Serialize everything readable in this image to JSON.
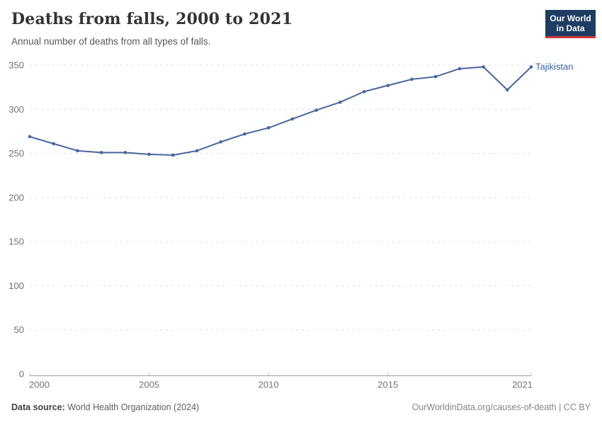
{
  "header": {
    "title": "Deaths from falls, 2000 to 2021",
    "subtitle": "Annual number of deaths from all types of falls."
  },
  "logo": {
    "line1": "Our World",
    "line2": "in Data",
    "bg_color": "#1d3d63",
    "accent_color": "#cc3b3b"
  },
  "footer": {
    "source_label": "Data source:",
    "source_value": "World Health Organization (2024)",
    "credit": "OurWorldinData.org/causes-of-death | CC BY"
  },
  "chart_data": {
    "type": "line",
    "title": "Deaths from falls, 2000 to 2021",
    "xlabel": "",
    "ylabel": "",
    "xlim": [
      2000,
      2021
    ],
    "ylim": [
      0,
      350
    ],
    "xticks": [
      2000,
      2005,
      2010,
      2015,
      2021
    ],
    "yticks": [
      0,
      50,
      100,
      150,
      200,
      250,
      300,
      350
    ],
    "grid": true,
    "legend_position": "end-of-line-label",
    "series": [
      {
        "name": "Tajikistan",
        "color": "#48659c",
        "label_color": "#3d639d",
        "x": [
          2000,
          2001,
          2002,
          2003,
          2004,
          2005,
          2006,
          2007,
          2008,
          2009,
          2010,
          2011,
          2012,
          2013,
          2014,
          2015,
          2016,
          2017,
          2018,
          2019,
          2020,
          2021
        ],
        "values": [
          269,
          261,
          253,
          251,
          251,
          249,
          248,
          253,
          263,
          272,
          279,
          289,
          299,
          308,
          320,
          327,
          334,
          337,
          346,
          348,
          322,
          348
        ]
      }
    ]
  }
}
